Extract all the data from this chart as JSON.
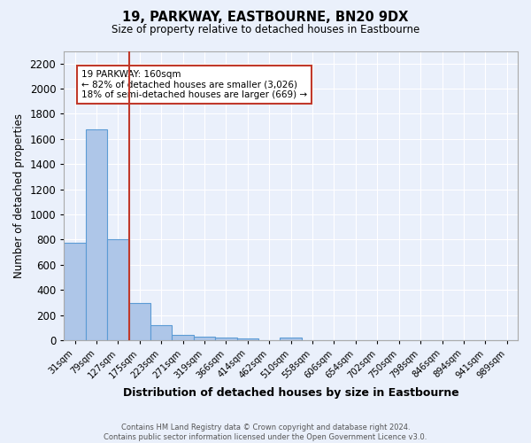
{
  "title": "19, PARKWAY, EASTBOURNE, BN20 9DX",
  "subtitle": "Size of property relative to detached houses in Eastbourne",
  "xlabel": "Distribution of detached houses by size in Eastbourne",
  "ylabel": "Number of detached properties",
  "footer_line1": "Contains HM Land Registry data © Crown copyright and database right 2024.",
  "footer_line2": "Contains public sector information licensed under the Open Government Licence v3.0.",
  "bin_labels": [
    "31sqm",
    "79sqm",
    "127sqm",
    "175sqm",
    "223sqm",
    "271sqm",
    "319sqm",
    "366sqm",
    "414sqm",
    "462sqm",
    "510sqm",
    "558sqm",
    "606sqm",
    "654sqm",
    "702sqm",
    "750sqm",
    "798sqm",
    "846sqm",
    "894sqm",
    "941sqm",
    "989sqm"
  ],
  "bar_values": [
    775,
    1675,
    800,
    295,
    120,
    42,
    25,
    18,
    12,
    0,
    20,
    0,
    0,
    0,
    0,
    0,
    0,
    0,
    0,
    0,
    0
  ],
  "bar_color": "#aec6e8",
  "bar_edge_color": "#5b9bd5",
  "bg_color": "#eaf0fb",
  "grid_color": "#ffffff",
  "red_line_x": 2.5,
  "ylim": [
    0,
    2300
  ],
  "yticks": [
    0,
    200,
    400,
    600,
    800,
    1000,
    1200,
    1400,
    1600,
    1800,
    2000,
    2200
  ],
  "annotation_text": "19 PARKWAY: 160sqm\n← 82% of detached houses are smaller (3,026)\n18% of semi-detached houses are larger (669) →",
  "property_sqm": 160
}
